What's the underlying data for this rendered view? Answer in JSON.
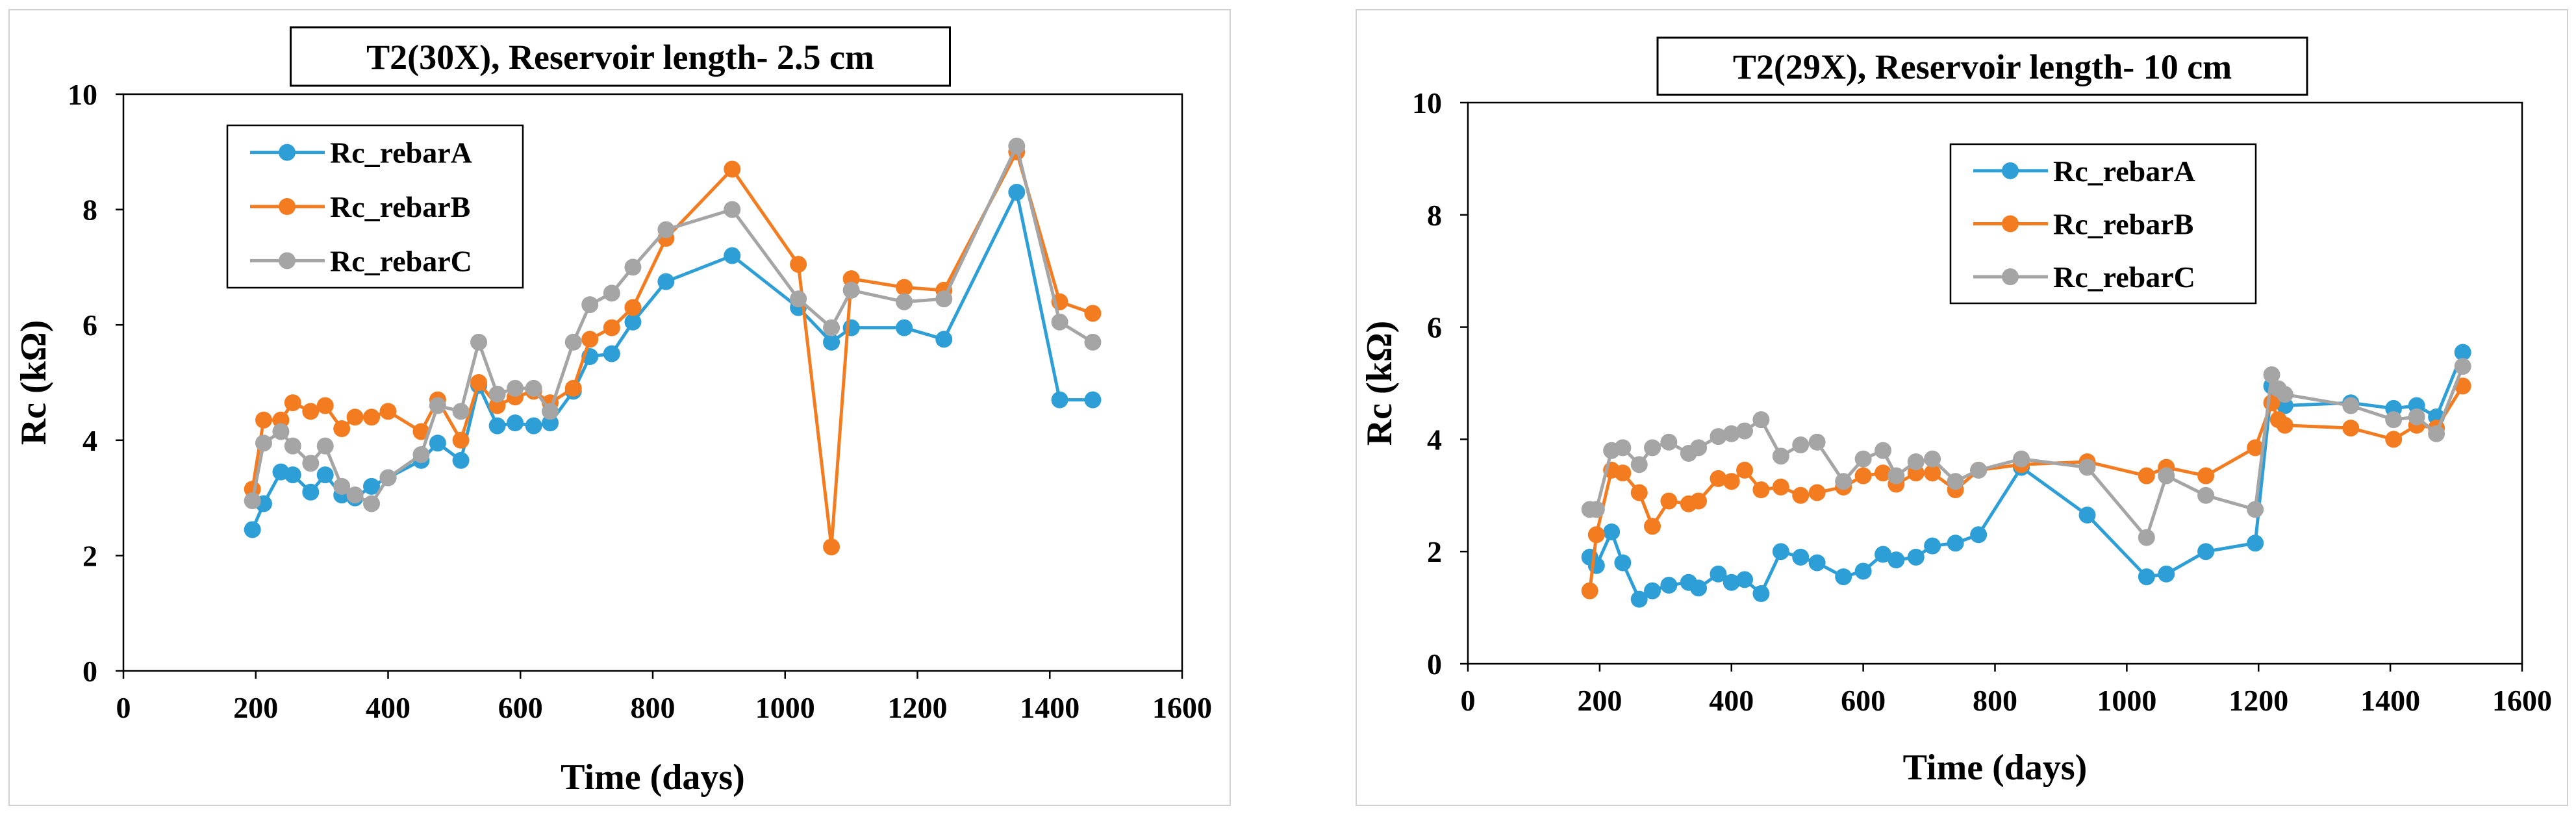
{
  "colors": {
    "rebarA": "#2E9FD6",
    "rebarB": "#F47C20",
    "rebarC": "#A5A5A5",
    "frame": "#d0d0d0",
    "text": "#000000"
  },
  "chart_data": [
    {
      "type": "line",
      "title": "T2(30X), Reservoir length- 2.5 cm",
      "xlabel": "Time (days)",
      "ylabel": "Rc (kΩ)",
      "xlim": [
        0,
        1600
      ],
      "ylim": [
        0,
        10
      ],
      "xticks": [
        0,
        200,
        400,
        600,
        800,
        1000,
        1200,
        1400,
        1600
      ],
      "yticks": [
        0,
        2,
        4,
        6,
        8,
        10
      ],
      "grid": false,
      "legend_position": "top-left",
      "series": [
        {
          "name": "Rc_rebarA",
          "color_key": "rebarA",
          "x": [
            195,
            212,
            238,
            256,
            283,
            305,
            330,
            350,
            375,
            400,
            450,
            475,
            510,
            537,
            565,
            592,
            620,
            645,
            680,
            705,
            738,
            770,
            820,
            920,
            1020,
            1070,
            1100,
            1180,
            1240,
            1350,
            1415,
            1465
          ],
          "y": [
            2.45,
            2.9,
            3.45,
            3.4,
            3.1,
            3.4,
            3.05,
            3.0,
            3.2,
            3.35,
            3.65,
            3.95,
            3.65,
            4.95,
            4.25,
            4.3,
            4.25,
            4.3,
            4.85,
            5.45,
            5.5,
            6.05,
            6.75,
            7.2,
            6.3,
            5.7,
            5.95,
            5.95,
            5.75,
            8.3,
            4.7,
            4.7
          ]
        },
        {
          "name": "Rc_rebarB",
          "color_key": "rebarB",
          "x": [
            195,
            212,
            238,
            256,
            283,
            305,
            330,
            350,
            375,
            400,
            450,
            475,
            510,
            537,
            565,
            592,
            620,
            645,
            680,
            705,
            738,
            770,
            820,
            920,
            1020,
            1070,
            1100,
            1180,
            1240,
            1350,
            1415,
            1465
          ],
          "y": [
            3.15,
            4.35,
            4.35,
            4.65,
            4.5,
            4.6,
            4.2,
            4.4,
            4.4,
            4.5,
            4.15,
            4.7,
            4.0,
            5.0,
            4.6,
            4.75,
            4.85,
            4.65,
            4.9,
            5.75,
            5.95,
            6.3,
            7.5,
            8.7,
            7.05,
            2.15,
            6.8,
            6.65,
            6.6,
            9.0,
            6.4,
            6.2
          ]
        },
        {
          "name": "Rc_rebarC",
          "color_key": "rebarC",
          "x": [
            195,
            212,
            238,
            256,
            283,
            305,
            330,
            350,
            375,
            400,
            450,
            475,
            510,
            537,
            565,
            592,
            620,
            645,
            680,
            705,
            738,
            770,
            820,
            920,
            1020,
            1070,
            1100,
            1180,
            1240,
            1350,
            1415,
            1465
          ],
          "y": [
            2.95,
            3.95,
            4.15,
            3.9,
            3.6,
            3.9,
            3.2,
            3.05,
            2.9,
            3.35,
            3.75,
            4.6,
            4.5,
            5.7,
            4.8,
            4.9,
            4.9,
            4.5,
            5.7,
            6.35,
            6.55,
            7.0,
            7.65,
            8.0,
            6.45,
            5.95,
            6.6,
            6.4,
            6.45,
            9.1,
            6.05,
            5.7
          ]
        }
      ]
    },
    {
      "type": "line",
      "title": "T2(29X), Reservoir length- 10 cm",
      "xlabel": "Time (days)",
      "ylabel": "Rc (kΩ)",
      "xlim": [
        0,
        1600
      ],
      "ylim": [
        0,
        10
      ],
      "xticks": [
        0,
        200,
        400,
        600,
        800,
        1000,
        1200,
        1400,
        1600
      ],
      "yticks": [
        0,
        2,
        4,
        6,
        8,
        10
      ],
      "grid": false,
      "legend_position": "top-center",
      "series": [
        {
          "name": "Rc_rebarA",
          "color_key": "rebarA",
          "x": [
            185,
            195,
            218,
            235,
            260,
            280,
            305,
            335,
            350,
            380,
            400,
            420,
            445,
            475,
            505,
            530,
            570,
            600,
            630,
            650,
            680,
            705,
            740,
            775,
            840,
            940,
            1030,
            1060,
            1120,
            1195,
            1220,
            1230,
            1240,
            1340,
            1405,
            1440,
            1470,
            1510
          ],
          "y": [
            1.9,
            1.75,
            2.35,
            1.8,
            1.15,
            1.3,
            1.4,
            1.45,
            1.35,
            1.6,
            1.45,
            1.5,
            1.25,
            2.0,
            1.9,
            1.8,
            1.55,
            1.65,
            1.95,
            1.85,
            1.9,
            2.1,
            2.15,
            2.3,
            3.5,
            2.65,
            1.55,
            1.6,
            2.0,
            2.15,
            4.95,
            4.7,
            4.6,
            4.65,
            4.55,
            4.6,
            4.4,
            5.55
          ]
        },
        {
          "name": "Rc_rebarB",
          "color_key": "rebarB",
          "x": [
            185,
            195,
            218,
            235,
            260,
            280,
            305,
            335,
            350,
            380,
            400,
            420,
            445,
            475,
            505,
            530,
            570,
            600,
            630,
            650,
            680,
            705,
            740,
            775,
            840,
            940,
            1030,
            1060,
            1120,
            1195,
            1220,
            1230,
            1240,
            1340,
            1405,
            1440,
            1470,
            1510
          ],
          "y": [
            1.3,
            2.3,
            3.45,
            3.4,
            3.05,
            2.45,
            2.9,
            2.85,
            2.9,
            3.3,
            3.25,
            3.45,
            3.1,
            3.15,
            3.0,
            3.05,
            3.15,
            3.35,
            3.4,
            3.2,
            3.4,
            3.4,
            3.1,
            3.45,
            3.55,
            3.6,
            3.35,
            3.5,
            3.35,
            3.85,
            4.65,
            4.35,
            4.25,
            4.2,
            4.0,
            4.25,
            4.2,
            4.95
          ]
        },
        {
          "name": "Rc_rebarC",
          "color_key": "rebarC",
          "x": [
            185,
            195,
            218,
            235,
            260,
            280,
            305,
            335,
            350,
            380,
            400,
            420,
            445,
            475,
            505,
            530,
            570,
            600,
            630,
            650,
            680,
            705,
            740,
            775,
            840,
            940,
            1030,
            1060,
            1120,
            1195,
            1220,
            1230,
            1240,
            1340,
            1405,
            1440,
            1470,
            1510
          ],
          "y": [
            2.75,
            2.75,
            3.8,
            3.85,
            3.55,
            3.85,
            3.95,
            3.75,
            3.85,
            4.05,
            4.1,
            4.15,
            4.35,
            3.7,
            3.9,
            3.95,
            3.25,
            3.65,
            3.8,
            3.35,
            3.6,
            3.65,
            3.25,
            3.45,
            3.65,
            3.5,
            2.25,
            3.35,
            3.0,
            2.75,
            5.15,
            4.9,
            4.8,
            4.6,
            4.35,
            4.4,
            4.1,
            5.3
          ]
        }
      ]
    }
  ]
}
